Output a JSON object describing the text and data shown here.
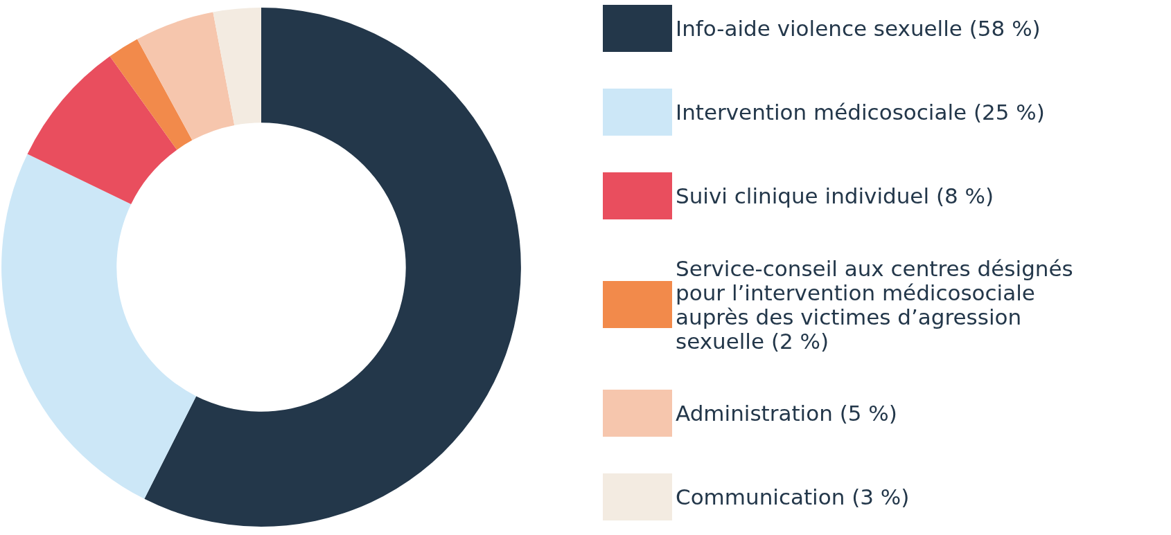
{
  "chart_data": {
    "type": "donut",
    "categories": [
      "Info-aide violence sexuelle (58 %)",
      "Intervention médicosociale (25 %)",
      "Suivi clinique individuel (8 %)",
      "Service-conseil aux centres désignés pour l’intervention médicosociale auprès des victimes d’agression sexuelle (2 %)",
      "Administration (5 %)",
      "Communication (3 %)"
    ],
    "values": [
      58,
      25,
      8,
      2,
      5,
      3
    ],
    "colors": [
      "#23374a",
      "#cce7f7",
      "#e94e5e",
      "#f28a4b",
      "#f6c6ad",
      "#f3ebe1"
    ],
    "legend": "right"
  }
}
